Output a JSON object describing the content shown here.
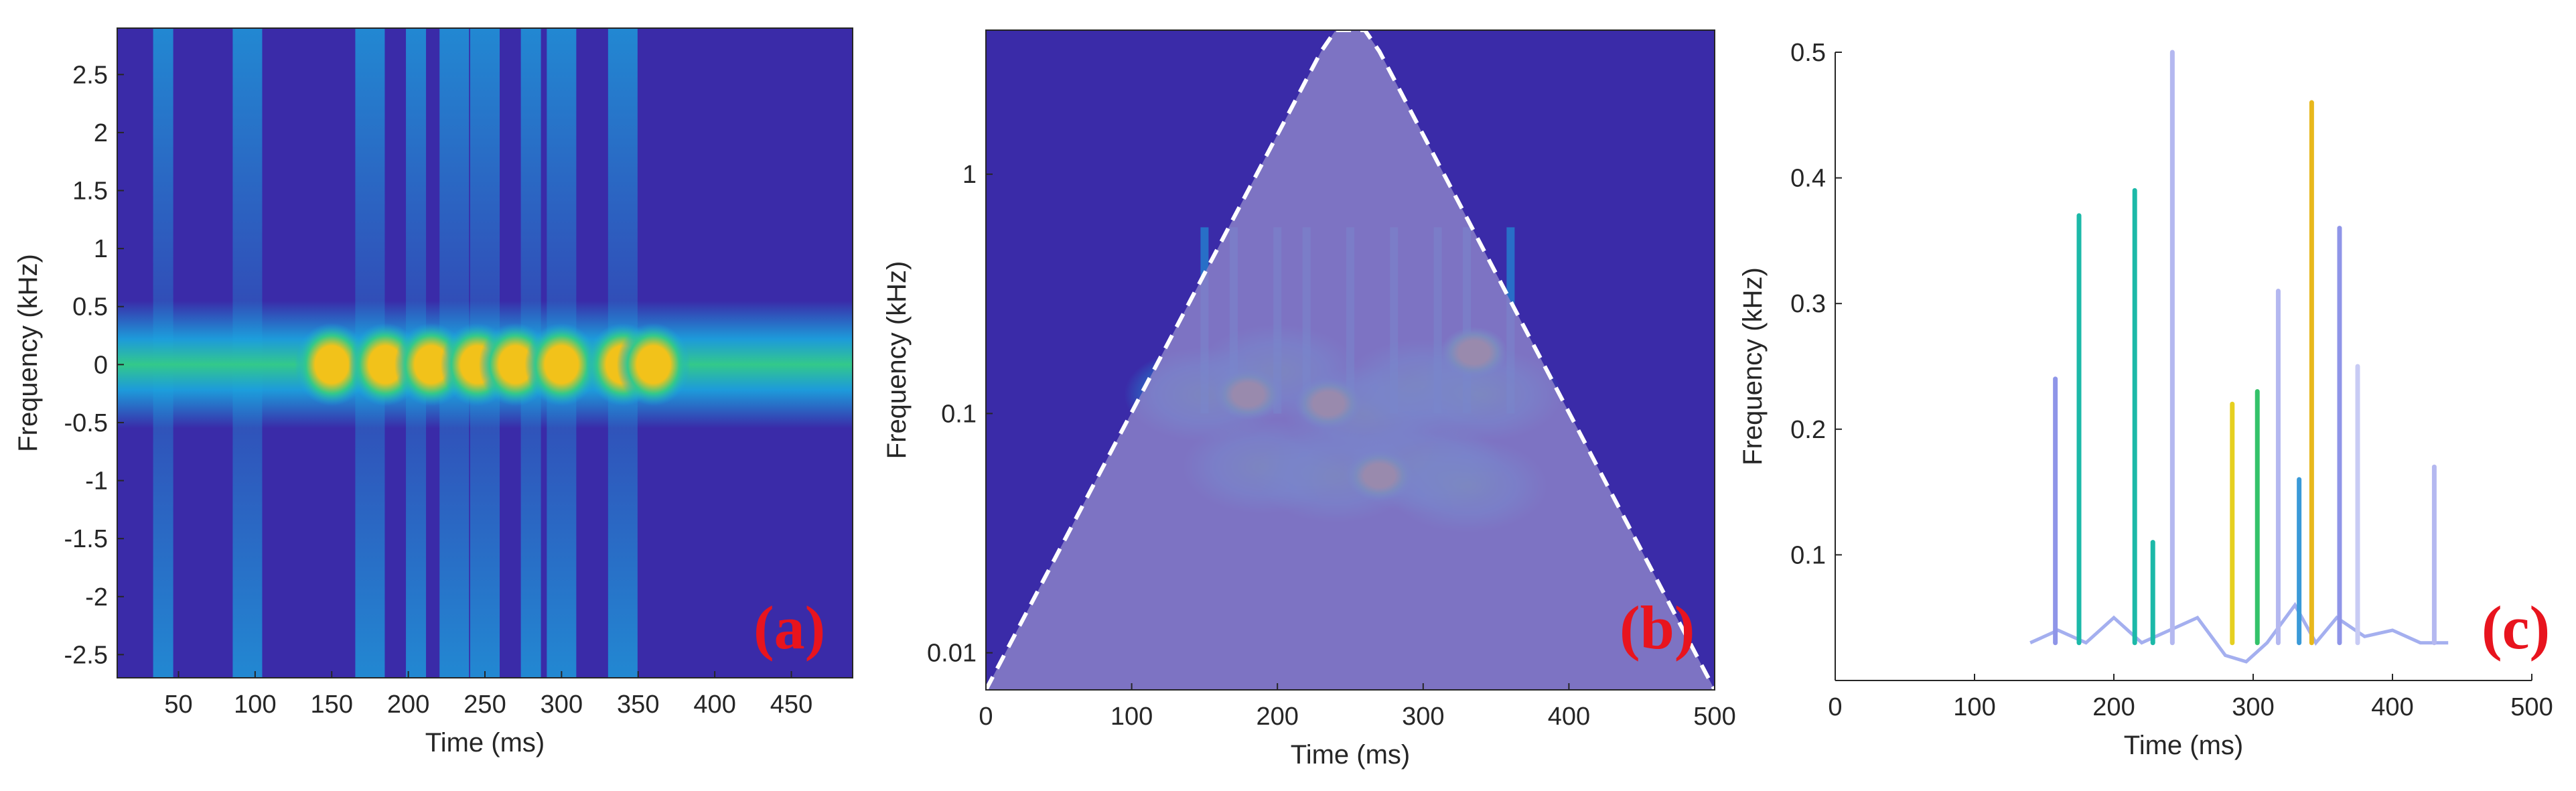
{
  "chart_data": [
    {
      "type": "heatmap",
      "panel_label": "(a)",
      "xlabel": "Time (ms)",
      "ylabel": "Frequency (kHz)",
      "xlim": [
        10,
        490
      ],
      "ylim": [
        -2.7,
        2.9
      ],
      "x_ticks": [
        50,
        100,
        150,
        200,
        250,
        300,
        350,
        400,
        450
      ],
      "y_ticks": [
        -2.5,
        -2,
        -1.5,
        -1,
        -0.5,
        0,
        0.5,
        1,
        1.5,
        2,
        2.5
      ],
      "x_tick_labels": [
        "50",
        "100",
        "150",
        "200",
        "250",
        "300",
        "350",
        "400",
        "450"
      ],
      "y_tick_labels": [
        "-2.5",
        "-2",
        "-1.5",
        "-1",
        "-0.5",
        "0",
        "0.5",
        "1",
        "1.5",
        "2",
        "2.5"
      ],
      "background_color": "#3a2ba8",
      "band": {
        "center": 0,
        "half_width": 0.55,
        "x_range": [
          10,
          490
        ]
      },
      "columns_at_ms": [
        40,
        95,
        175,
        205,
        230,
        250,
        280,
        300,
        340
      ],
      "hot_spots_at_ms": [
        150,
        185,
        215,
        245,
        270,
        300,
        340,
        360
      ],
      "colors": {
        "low": "#3a2ba8",
        "mid": "#1aa7e0",
        "high": "#33c98a",
        "peak": "#f2c21a"
      }
    },
    {
      "type": "heatmap",
      "panel_label": "(b)",
      "xlabel": "Time (ms)",
      "ylabel": "Frequency (kHz)",
      "xlim": [
        0,
        500
      ],
      "ylim": [
        0.007,
        4
      ],
      "y_scale": "log",
      "x_ticks": [
        0,
        100,
        200,
        300,
        400,
        500
      ],
      "y_ticks": [
        0.01,
        0.1,
        1
      ],
      "x_tick_labels": [
        "0",
        "100",
        "200",
        "300",
        "400",
        "500"
      ],
      "y_tick_labels": [
        "0.01",
        "0.1",
        "1"
      ],
      "cone_of_influence": "dashed white curve, minimum near 250 ms",
      "hot_spots": [
        {
          "t": 235,
          "f": 0.11
        },
        {
          "t": 270,
          "f": 0.055
        },
        {
          "t": 335,
          "f": 0.18
        },
        {
          "t": 180,
          "f": 0.12
        }
      ],
      "colors": {
        "low": "#3a2ba8",
        "mid": "#1aa7e0",
        "high": "#33c98a",
        "peak": "#f2c21a",
        "coi_shade": "#8a80c8"
      }
    },
    {
      "type": "line",
      "panel_label": "(c)",
      "xlabel": "Time (ms)",
      "ylabel": "Frequency (kHz)",
      "xlim": [
        0,
        500
      ],
      "ylim": [
        0,
        0.5
      ],
      "x_ticks": [
        0,
        100,
        200,
        300,
        400,
        500
      ],
      "y_ticks": [
        0.1,
        0.2,
        0.3,
        0.4,
        0.5
      ],
      "x_tick_labels": [
        "0",
        "100",
        "200",
        "300",
        "400",
        "500"
      ],
      "y_tick_labels": [
        "0.1",
        "0.2",
        "0.3",
        "0.4",
        "0.5"
      ],
      "spikes": [
        {
          "t": 158,
          "top": 0.24,
          "color": "#8f95e8"
        },
        {
          "t": 175,
          "top": 0.37,
          "color": "#1cb9a8"
        },
        {
          "t": 215,
          "top": 0.39,
          "color": "#1cb9a8"
        },
        {
          "t": 228,
          "top": 0.11,
          "color": "#1cb9a8"
        },
        {
          "t": 242,
          "top": 0.5,
          "color": "#b4b8f0"
        },
        {
          "t": 285,
          "top": 0.22,
          "color": "#e6d020"
        },
        {
          "t": 303,
          "top": 0.23,
          "color": "#34c26a"
        },
        {
          "t": 318,
          "top": 0.31,
          "color": "#b4b8f0"
        },
        {
          "t": 333,
          "top": 0.16,
          "color": "#3a9ad8"
        },
        {
          "t": 342,
          "top": 0.46,
          "color": "#e8b81c"
        },
        {
          "t": 362,
          "top": 0.36,
          "color": "#8f95e8"
        },
        {
          "t": 375,
          "top": 0.25,
          "color": "#c8cbf4"
        },
        {
          "t": 430,
          "top": 0.17,
          "color": "#b4b8f0"
        }
      ],
      "baseline_trace": [
        [
          140,
          0.03
        ],
        [
          160,
          0.04
        ],
        [
          180,
          0.03
        ],
        [
          200,
          0.05
        ],
        [
          220,
          0.03
        ],
        [
          240,
          0.04
        ],
        [
          260,
          0.05
        ],
        [
          280,
          0.02
        ],
        [
          295,
          0.015
        ],
        [
          310,
          0.03
        ],
        [
          330,
          0.06
        ],
        [
          345,
          0.03
        ],
        [
          360,
          0.05
        ],
        [
          380,
          0.035
        ],
        [
          400,
          0.04
        ],
        [
          420,
          0.03
        ],
        [
          440,
          0.03
        ]
      ],
      "colors": {
        "trace": "#7e8de8"
      }
    }
  ]
}
